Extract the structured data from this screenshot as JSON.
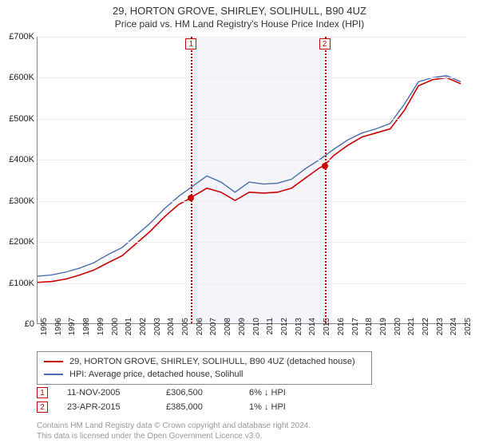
{
  "title": {
    "line1": "29, HORTON GROVE, SHIRLEY, SOLIHULL, B90 4UZ",
    "line2": "Price paid vs. HM Land Registry's House Price Index (HPI)",
    "fontsize_line1": 13,
    "fontsize_line2": 12
  },
  "chart": {
    "type": "line",
    "background_color": "#ffffff",
    "grid_color": "#eeeeee",
    "axis_color": "#888888",
    "x": {
      "min": 1995,
      "max": 2025.5,
      "ticks": [
        1995,
        1996,
        1997,
        1998,
        1999,
        2000,
        2001,
        2002,
        2003,
        2004,
        2005,
        2006,
        2007,
        2008,
        2009,
        2010,
        2011,
        2012,
        2013,
        2014,
        2015,
        2016,
        2017,
        2018,
        2019,
        2020,
        2021,
        2022,
        2023,
        2024,
        2025
      ],
      "tick_fontsize": 10
    },
    "y": {
      "min": 0,
      "max": 700000,
      "ticks": [
        0,
        100000,
        200000,
        300000,
        400000,
        500000,
        600000,
        700000
      ],
      "tick_labels": [
        "£0",
        "£100K",
        "£200K",
        "£300K",
        "£400K",
        "£500K",
        "£600K",
        "£700K"
      ],
      "tick_fontsize": 11
    },
    "shade": {
      "from_year": 2005.87,
      "to_year": 2015.31,
      "color": "#f3f5fb"
    },
    "series": [
      {
        "name": "29, HORTON GROVE, SHIRLEY, SOLIHULL, B90 4UZ (detached house)",
        "color": "#cc0000",
        "line_width": 1.6,
        "points": [
          [
            1995,
            100000
          ],
          [
            1996,
            102000
          ],
          [
            1997,
            108000
          ],
          [
            1998,
            118000
          ],
          [
            1999,
            130000
          ],
          [
            2000,
            148000
          ],
          [
            2001,
            165000
          ],
          [
            2002,
            195000
          ],
          [
            2003,
            225000
          ],
          [
            2004,
            260000
          ],
          [
            2005,
            290000
          ],
          [
            2005.87,
            306500
          ],
          [
            2006,
            310000
          ],
          [
            2007,
            330000
          ],
          [
            2008,
            320000
          ],
          [
            2009,
            300000
          ],
          [
            2010,
            320000
          ],
          [
            2011,
            318000
          ],
          [
            2012,
            320000
          ],
          [
            2013,
            330000
          ],
          [
            2014,
            355000
          ],
          [
            2015,
            380000
          ],
          [
            2015.31,
            385000
          ],
          [
            2016,
            410000
          ],
          [
            2017,
            435000
          ],
          [
            2018,
            455000
          ],
          [
            2019,
            465000
          ],
          [
            2020,
            475000
          ],
          [
            2021,
            520000
          ],
          [
            2022,
            580000
          ],
          [
            2023,
            595000
          ],
          [
            2024,
            600000
          ],
          [
            2025,
            585000
          ]
        ]
      },
      {
        "name": "HPI: Average price, detached house, Solihull",
        "color": "#4a6db0",
        "line_width": 1.4,
        "points": [
          [
            1995,
            115000
          ],
          [
            1996,
            118000
          ],
          [
            1997,
            125000
          ],
          [
            1998,
            135000
          ],
          [
            1999,
            148000
          ],
          [
            2000,
            168000
          ],
          [
            2001,
            185000
          ],
          [
            2002,
            215000
          ],
          [
            2003,
            245000
          ],
          [
            2004,
            280000
          ],
          [
            2005,
            310000
          ],
          [
            2006,
            335000
          ],
          [
            2007,
            360000
          ],
          [
            2008,
            345000
          ],
          [
            2009,
            320000
          ],
          [
            2010,
            345000
          ],
          [
            2011,
            340000
          ],
          [
            2012,
            342000
          ],
          [
            2013,
            352000
          ],
          [
            2014,
            378000
          ],
          [
            2015,
            400000
          ],
          [
            2016,
            425000
          ],
          [
            2017,
            448000
          ],
          [
            2018,
            465000
          ],
          [
            2019,
            475000
          ],
          [
            2020,
            488000
          ],
          [
            2021,
            535000
          ],
          [
            2022,
            590000
          ],
          [
            2023,
            600000
          ],
          [
            2024,
            605000
          ],
          [
            2025,
            590000
          ]
        ]
      }
    ],
    "events": [
      {
        "n": "1",
        "year": 2005.87,
        "price": 306500,
        "color": "#cc0000"
      },
      {
        "n": "2",
        "year": 2015.31,
        "price": 385000,
        "color": "#cc0000"
      }
    ],
    "marker_color": "#cc0000",
    "marker_radius": 4
  },
  "legend": {
    "items": [
      {
        "label": "29, HORTON GROVE, SHIRLEY, SOLIHULL, B90 4UZ (detached house)",
        "color": "#cc0000"
      },
      {
        "label": "HPI: Average price, detached house, Solihull",
        "color": "#4a6db0"
      }
    ],
    "border_color": "#888888",
    "fontsize": 11
  },
  "sales": [
    {
      "n": "1",
      "date": "11-NOV-2005",
      "price": "£306,500",
      "delta": "6% ↓ HPI",
      "color": "#cc0000"
    },
    {
      "n": "2",
      "date": "23-APR-2015",
      "price": "£385,000",
      "delta": "1% ↓ HPI",
      "color": "#cc0000"
    }
  ],
  "footnote": {
    "line1": "Contains HM Land Registry data © Crown copyright and database right 2024.",
    "line2": "This data is licensed under the Open Government Licence v3.0.",
    "color": "#999999",
    "fontsize": 10
  }
}
